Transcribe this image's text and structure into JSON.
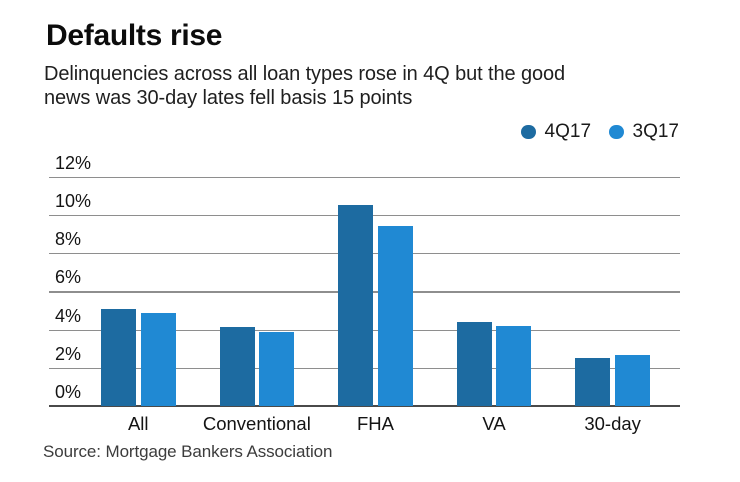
{
  "header": {
    "title": "Defaults rise",
    "subtitle_line1": "Delinquencies across all loan types rose in 4Q but the good",
    "subtitle_line2": "news was 30-day lates fell basis 15 points"
  },
  "source": "Source: Mortgage Bankers Association",
  "colors": {
    "series_4q17": "#1d6ba1",
    "series_3q17": "#2089d3",
    "gridline": "#8e8e8e",
    "axis_line": "#4a4a4a",
    "text": "#141414"
  },
  "chart_data": {
    "type": "bar",
    "title": "Defaults rise",
    "subtitle": "Delinquencies across all loan types rose in 4Q but the good news was 30-day lates fell basis 15 points",
    "categories": [
      "All",
      "Conventional",
      "FHA",
      "VA",
      "30-day"
    ],
    "series": [
      {
        "name": "4Q17",
        "color": "#1d6ba1",
        "values": [
          5.1,
          4.15,
          10.5,
          4.4,
          2.5
        ]
      },
      {
        "name": "3Q17",
        "color": "#2089d3",
        "values": [
          4.85,
          3.9,
          9.45,
          4.2,
          2.65
        ]
      }
    ],
    "xlabel": "",
    "ylabel": "",
    "ylim": [
      0,
      12
    ],
    "y_ticks": [
      {
        "value": 12,
        "label": "12%"
      },
      {
        "value": 10,
        "label": "10%"
      },
      {
        "value": 8,
        "label": "8%"
      },
      {
        "value": 6,
        "label": "6%"
      },
      {
        "value": 4,
        "label": "4%"
      },
      {
        "value": 2,
        "label": "2%"
      },
      {
        "value": 0,
        "label": "0%"
      }
    ],
    "grid": true,
    "legend_position": "top-right"
  }
}
